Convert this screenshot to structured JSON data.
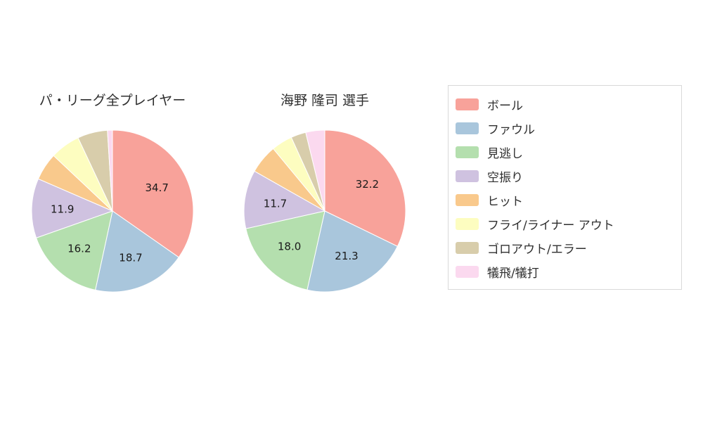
{
  "figure": {
    "background": "#ffffff"
  },
  "chart_data": {
    "type": "pie",
    "direction": "clockwise",
    "start_angle_deg": 0,
    "legend_position": "right",
    "categories": [
      "ボール",
      "ファウル",
      "見逃し",
      "空振り",
      "ヒット",
      "フライ/ライナー アウト",
      "ゴロアウト/エラー",
      "犠飛/犠打"
    ],
    "colors": [
      "#f8a29a",
      "#a9c6dc",
      "#b4dfae",
      "#cfc2e0",
      "#f9c98c",
      "#fdfdc0",
      "#d8cdab",
      "#fbd9ef"
    ],
    "charts": [
      {
        "title": "パ・リーグ全プレイヤー",
        "values": [
          34.7,
          18.7,
          16.2,
          11.9,
          5.5,
          6.0,
          6.0,
          1.0
        ],
        "value_labels": [
          "34.7",
          "18.7",
          "16.2",
          "11.9",
          "",
          "",
          "",
          ""
        ]
      },
      {
        "title": "海野 隆司  選手",
        "values": [
          32.2,
          21.3,
          18.0,
          11.7,
          5.8,
          4.2,
          3.0,
          3.8
        ],
        "value_labels": [
          "32.2",
          "21.3",
          "18.0",
          "11.7",
          "",
          "",
          "",
          ""
        ]
      }
    ]
  }
}
